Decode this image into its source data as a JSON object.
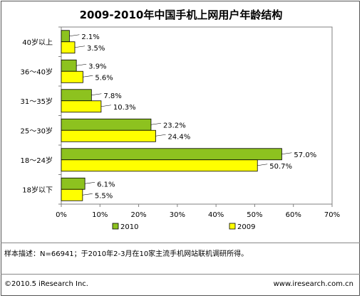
{
  "title": "2009-2010年中国手机上网用户年龄结构",
  "chart_data": {
    "type": "bar",
    "orientation": "horizontal",
    "categories": [
      "40岁以上",
      "36～40岁",
      "31～35岁",
      "25～30岁",
      "18～24岁",
      "18岁以下"
    ],
    "series": [
      {
        "name": "2010",
        "color": "#8DC21F",
        "values": [
          2.1,
          3.9,
          7.8,
          23.2,
          57.0,
          6.1
        ],
        "labels": [
          "2.1%",
          "3.9%",
          "7.8%",
          "23.2%",
          "57.0%",
          "6.1%"
        ]
      },
      {
        "name": "2009",
        "color": "#FFFF00",
        "values": [
          3.5,
          5.6,
          10.3,
          24.4,
          50.7,
          5.5
        ],
        "labels": [
          "3.5%",
          "5.6%",
          "10.3%",
          "24.4%",
          "50.7%",
          "5.5%"
        ]
      }
    ],
    "xlim": [
      0,
      70
    ],
    "xticks": [
      "0%",
      "10%",
      "20%",
      "30%",
      "40%",
      "50%",
      "60%",
      "70%"
    ],
    "grid": false,
    "legend_position": "bottom"
  },
  "footnote": "样本描述：N=66941；于2010年2-3月在10家主流手机网站联机调研所得。",
  "copyright": "©2010.5 iResearch Inc.",
  "website": "www.iresearch.com.cn"
}
